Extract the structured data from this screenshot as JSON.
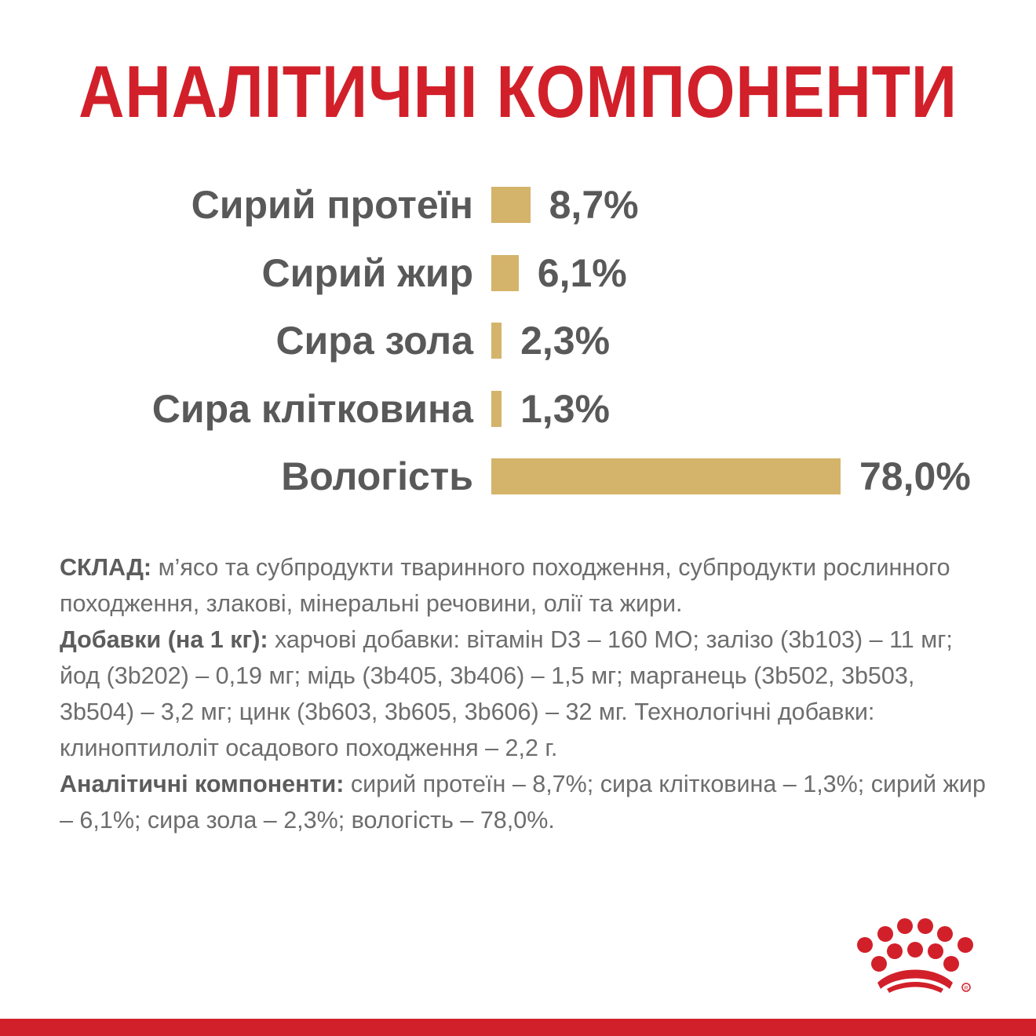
{
  "colors": {
    "title": "#d2202a",
    "bar": "#d4b36a",
    "text": "#595959",
    "brand_red": "#d2202a"
  },
  "chart_data": {
    "type": "bar",
    "orientation": "horizontal",
    "title": "АНАЛІТИЧНІ КОМПОНЕНТИ",
    "categories": [
      "Сирий протеїн",
      "Сирий жир",
      "Сира зола",
      "Сира клітковина",
      "Вологість"
    ],
    "values": [
      8.7,
      6.1,
      2.3,
      1.3,
      78.0
    ],
    "value_labels": [
      "8,7%",
      "6,1%",
      "2,3%",
      "1,3%",
      "78,0%"
    ],
    "unit": "%",
    "grid": false,
    "legend": "none"
  },
  "composition": {
    "sklad_label": "СКЛАД:",
    "sklad_text": " м’ясо та субпродукти тваринного походження, субпродукти рослинного походження, злакові, мінеральні речовини, олії та жири.",
    "additives_label": "Добавки (на 1 кг):",
    "additives_text": " харчові добавки: вітамін D3 – 160 МО; залізо (3b103) – 11 мг; йод (3b202) – 0,19 мг; мідь (3b405, 3b406) – 1,5 мг; марганець (3b502, 3b503, 3b504) – 3,2 мг; цинк (3b603, 3b605, 3b606) – 32 мг. Технологічні добавки: клиноптилоліт осадового походження – 2,2 г.",
    "analytical_label": "Аналітичні компоненти:",
    "analytical_text": " сирий протеїн – 8,7%; сира клітковина – 1,3%; сирий жир – 6,1%; сира зола – 2,3%; вологість – 78,0%."
  },
  "logo": {
    "icon": "royal-canin-crown-icon"
  }
}
